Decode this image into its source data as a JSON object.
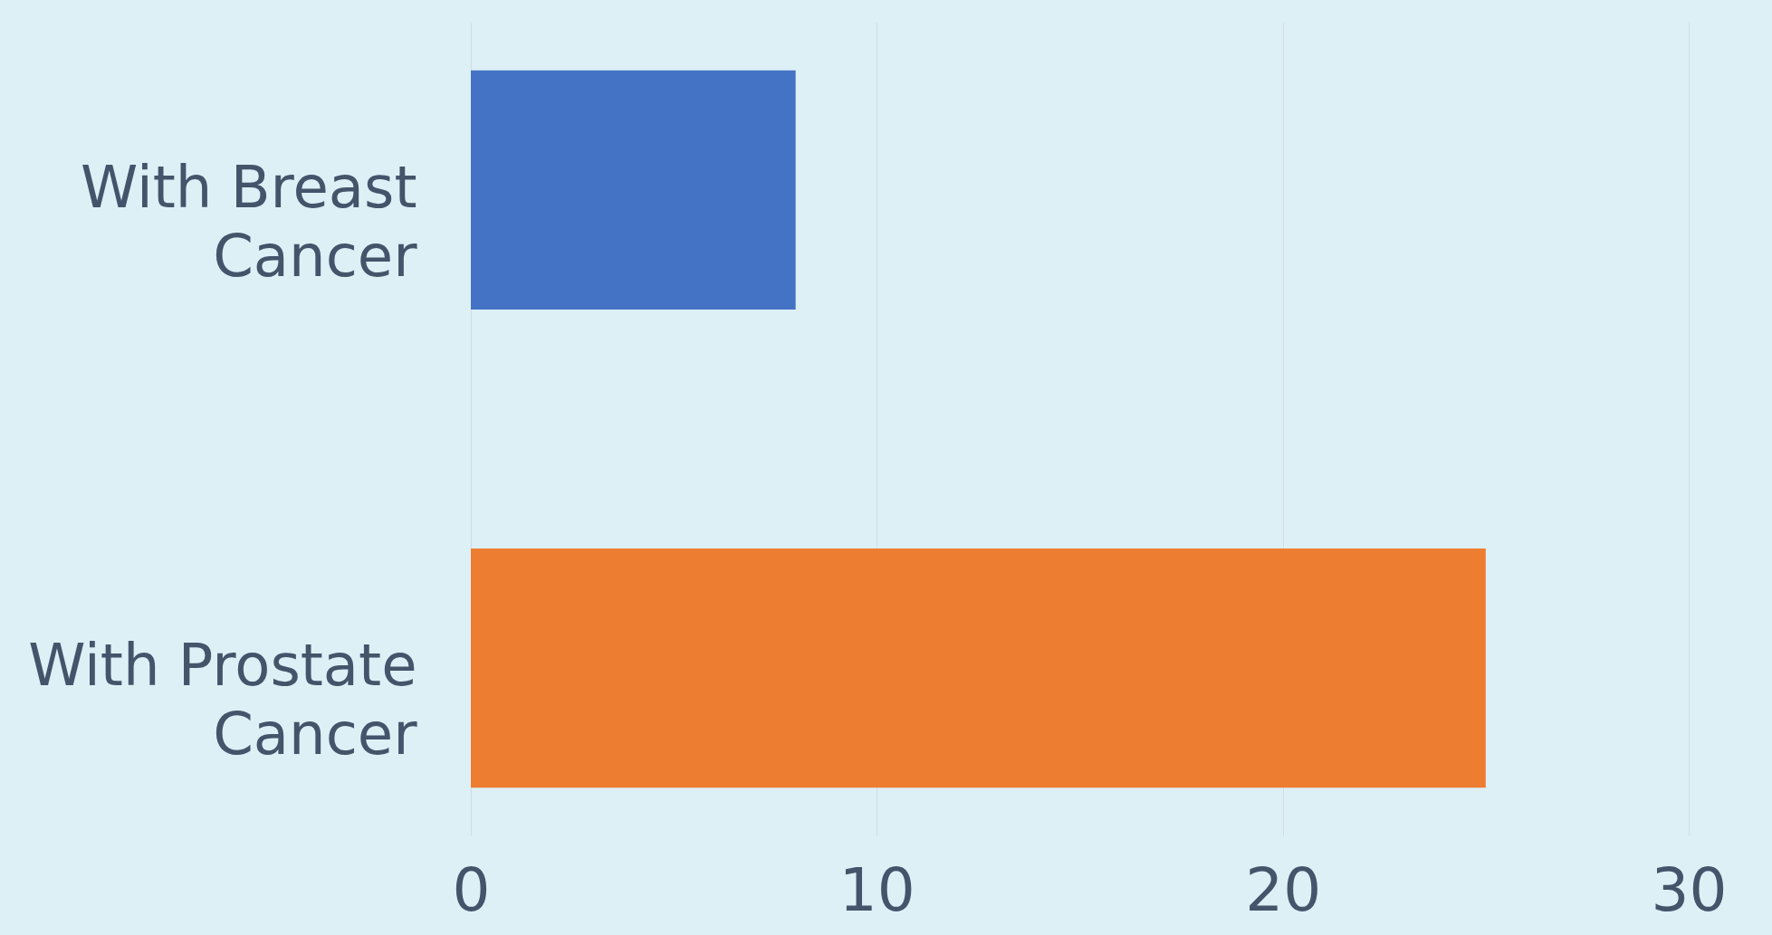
{
  "chart_data": {
    "type": "bar",
    "orientation": "horizontal",
    "categories": [
      "With Breast Cancer",
      "With Prostate Cancer"
    ],
    "values": [
      8,
      25
    ],
    "colors": [
      "#4472c4",
      "#ed7d31"
    ],
    "xlim": [
      0,
      30
    ],
    "xticks": [
      0,
      10,
      20,
      30
    ],
    "grid": "x"
  }
}
